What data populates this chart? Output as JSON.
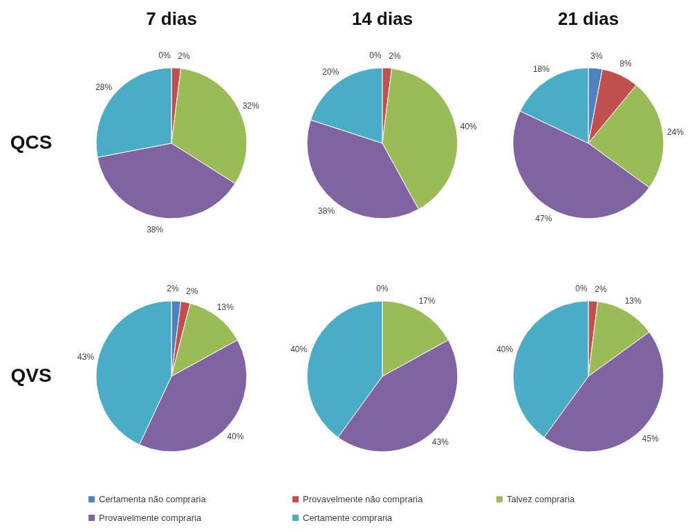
{
  "chart_data": [
    {
      "type": "pie",
      "title": "7 dias",
      "ylabel": "QCS",
      "categories": [
        "Certamenta não compraria",
        "Provavelmente não compraria",
        "Talvez compraria",
        "Provavelmente compraria",
        "Certamente compraria"
      ],
      "values": [
        0,
        2,
        32,
        38,
        28
      ],
      "colors": [
        "#4f81bd",
        "#c0504d",
        "#9bbb59",
        "#8064a2",
        "#4bacc6"
      ],
      "value_labels": [
        "0%",
        "2%",
        "32%",
        "38%",
        "28%"
      ],
      "legend": "bottom"
    },
    {
      "type": "pie",
      "title": "14 dias",
      "categories": [
        null,
        null,
        null,
        null,
        null
      ],
      "values": [
        0,
        2,
        40,
        38,
        20
      ],
      "colors": [
        "#4f81bd",
        "#c0504d",
        "#9bbb59",
        "#8064a2",
        "#4bacc6"
      ],
      "value_labels": [
        "0%",
        "2%",
        "40%",
        "38%",
        "20%"
      ]
    },
    {
      "type": "pie",
      "title": "21 dias",
      "categories": [
        null,
        null,
        null,
        null,
        null
      ],
      "values": [
        3,
        8,
        24,
        47,
        18
      ],
      "colors": [
        "#4f81bd",
        "#c0504d",
        "#9bbb59",
        "#8064a2",
        "#4bacc6"
      ],
      "value_labels": [
        "3%",
        "8%",
        "24%",
        "47%",
        "18%"
      ]
    },
    {
      "type": "pie",
      "ylabel": "QVS",
      "categories": [
        null,
        null,
        null,
        null,
        null
      ],
      "values": [
        2,
        2,
        13,
        40,
        43
      ],
      "colors": [
        "#4f81bd",
        "#c0504d",
        "#9bbb59",
        "#8064a2",
        "#4bacc6"
      ],
      "value_labels": [
        "2%",
        "2%",
        "13%",
        "40%",
        "43%"
      ]
    },
    {
      "type": "pie",
      "categories": [
        null,
        null,
        null,
        null,
        null
      ],
      "values": [
        0,
        0,
        17,
        43,
        40
      ],
      "colors": [
        "#4f81bd",
        "#c0504d",
        "#9bbb59",
        "#8064a2",
        "#4bacc6"
      ],
      "value_labels": [
        "0%",
        null,
        "17%",
        "43%",
        "40%"
      ]
    },
    {
      "type": "pie",
      "categories": [
        null,
        null,
        null,
        null,
        null
      ],
      "values": [
        0,
        2,
        13,
        45,
        40
      ],
      "colors": [
        "#4f81bd",
        "#c0504d",
        "#9bbb59",
        "#8064a2",
        "#4bacc6"
      ],
      "value_labels": [
        "0%",
        "2%",
        "13%",
        "45%",
        "40%"
      ]
    }
  ]
}
